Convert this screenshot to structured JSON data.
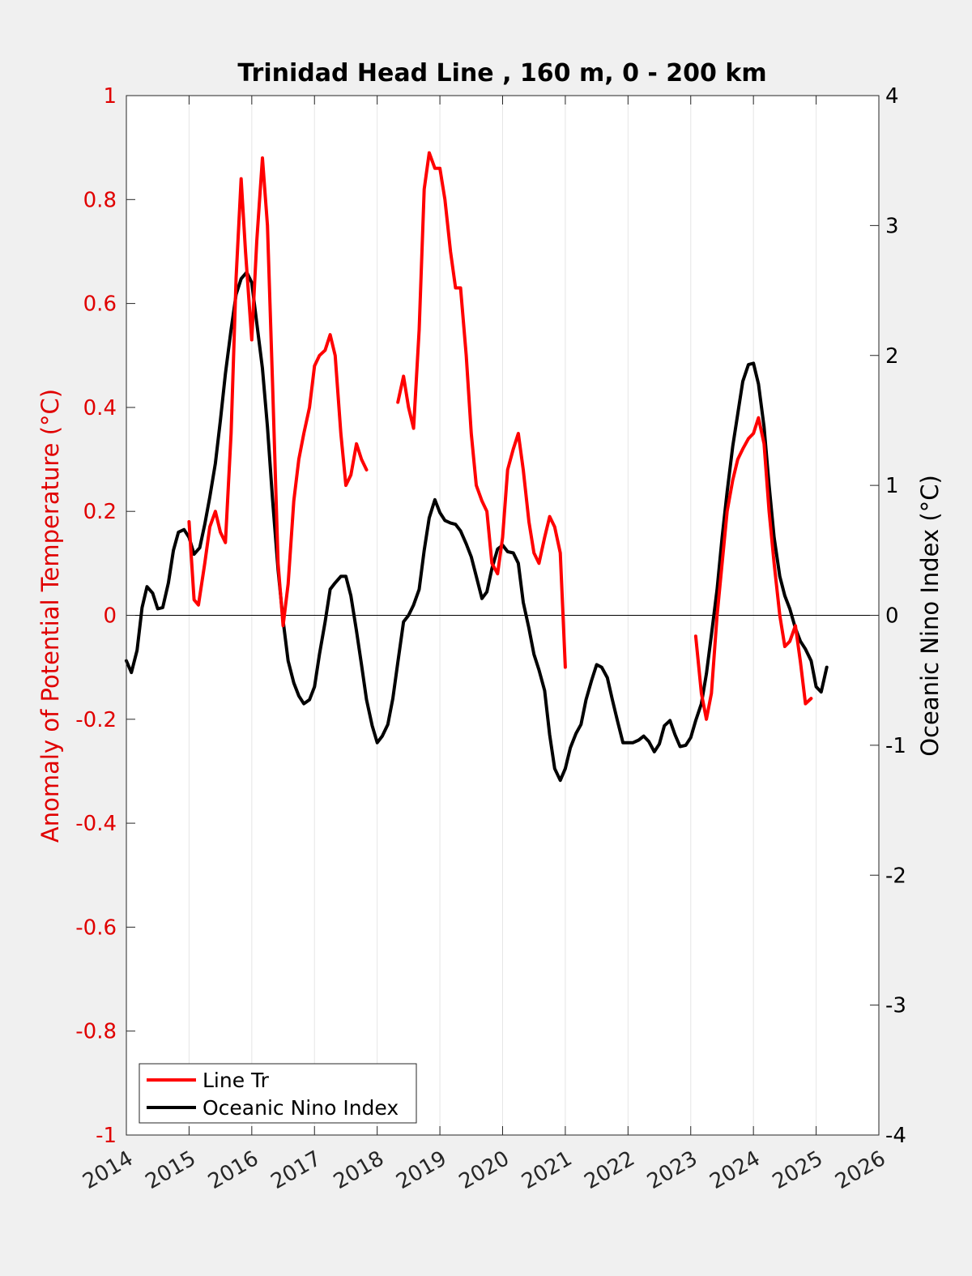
{
  "chart_data": {
    "type": "line",
    "title": "Trinidad Head Line , 160 m, 0 - 200 km",
    "ylabel_left": "Anomaly of Potential Temperature (°C)",
    "ylabel_right": "Oceanic Nino Index (°C)",
    "xlabel": "",
    "xlim": [
      2014,
      2026
    ],
    "ylim_left": [
      -1,
      1
    ],
    "ylim_right": [
      -4,
      4
    ],
    "x_ticks": [
      "2014",
      "2015",
      "2016",
      "2017",
      "2018",
      "2019",
      "2020",
      "2021",
      "2022",
      "2023",
      "2024",
      "2025",
      "2026"
    ],
    "y_ticks_left": [
      "1",
      "0.8",
      "0.6",
      "0.4",
      "0.2",
      "0",
      "-0.2",
      "-0.4",
      "-0.6",
      "-0.8",
      "-1"
    ],
    "y_ticks_right": [
      "4",
      "3",
      "2",
      "1",
      "0",
      "-1",
      "-2",
      "-3",
      "-4"
    ],
    "grid": "vertical",
    "legend_position": "bottom-left",
    "colors": {
      "line_tr": "#ff0000",
      "oni": "#000000",
      "left_axis": "#e00000",
      "right_axis": "#000000"
    },
    "legend": [
      "Line Tr",
      "Oceanic Nino Index"
    ],
    "series": [
      {
        "name": "Line Tr",
        "axis": "left",
        "color": "#ff0000",
        "segments": [
          [
            [
              2015.0,
              0.18
            ],
            [
              2015.08,
              0.03
            ],
            [
              2015.15,
              0.02
            ],
            [
              2015.25,
              0.1
            ],
            [
              2015.33,
              0.17
            ],
            [
              2015.42,
              0.2
            ],
            [
              2015.5,
              0.16
            ],
            [
              2015.58,
              0.14
            ],
            [
              2015.67,
              0.35
            ],
            [
              2015.75,
              0.65
            ],
            [
              2015.83,
              0.84
            ],
            [
              2015.9,
              0.7
            ],
            [
              2016.0,
              0.53
            ],
            [
              2016.08,
              0.72
            ],
            [
              2016.17,
              0.88
            ],
            [
              2016.25,
              0.75
            ],
            [
              2016.33,
              0.45
            ],
            [
              2016.42,
              0.1
            ],
            [
              2016.5,
              -0.02
            ],
            [
              2016.58,
              0.06
            ],
            [
              2016.67,
              0.22
            ],
            [
              2016.75,
              0.3
            ],
            [
              2016.83,
              0.35
            ],
            [
              2016.92,
              0.4
            ],
            [
              2017.0,
              0.48
            ],
            [
              2017.08,
              0.5
            ],
            [
              2017.17,
              0.51
            ],
            [
              2017.25,
              0.54
            ],
            [
              2017.33,
              0.5
            ],
            [
              2017.42,
              0.35
            ],
            [
              2017.5,
              0.25
            ],
            [
              2017.58,
              0.27
            ],
            [
              2017.67,
              0.33
            ],
            [
              2017.75,
              0.3
            ],
            [
              2017.83,
              0.28
            ]
          ],
          [
            [
              2018.33,
              0.41
            ],
            [
              2018.42,
              0.46
            ],
            [
              2018.5,
              0.4
            ],
            [
              2018.58,
              0.36
            ],
            [
              2018.67,
              0.55
            ],
            [
              2018.75,
              0.82
            ],
            [
              2018.83,
              0.89
            ],
            [
              2018.92,
              0.86
            ],
            [
              2019.0,
              0.86
            ],
            [
              2019.08,
              0.8
            ],
            [
              2019.17,
              0.7
            ],
            [
              2019.25,
              0.63
            ],
            [
              2019.33,
              0.63
            ],
            [
              2019.42,
              0.5
            ],
            [
              2019.5,
              0.35
            ],
            [
              2019.58,
              0.25
            ],
            [
              2019.67,
              0.22
            ],
            [
              2019.75,
              0.2
            ],
            [
              2019.83,
              0.1
            ],
            [
              2019.92,
              0.08
            ],
            [
              2020.0,
              0.15
            ],
            [
              2020.08,
              0.28
            ],
            [
              2020.17,
              0.32
            ],
            [
              2020.25,
              0.35
            ],
            [
              2020.33,
              0.28
            ],
            [
              2020.42,
              0.18
            ],
            [
              2020.5,
              0.12
            ],
            [
              2020.58,
              0.1
            ],
            [
              2020.67,
              0.15
            ],
            [
              2020.75,
              0.19
            ],
            [
              2020.83,
              0.17
            ],
            [
              2020.92,
              0.12
            ],
            [
              2021.0,
              -0.1
            ]
          ],
          [
            [
              2023.08,
              -0.04
            ],
            [
              2023.17,
              -0.15
            ],
            [
              2023.25,
              -0.2
            ],
            [
              2023.33,
              -0.15
            ],
            [
              2023.42,
              0.0
            ],
            [
              2023.5,
              0.1
            ],
            [
              2023.58,
              0.2
            ],
            [
              2023.67,
              0.26
            ],
            [
              2023.75,
              0.3
            ],
            [
              2023.83,
              0.32
            ],
            [
              2023.92,
              0.34
            ],
            [
              2024.0,
              0.35
            ],
            [
              2024.08,
              0.38
            ],
            [
              2024.17,
              0.33
            ],
            [
              2024.25,
              0.2
            ],
            [
              2024.33,
              0.1
            ],
            [
              2024.42,
              0.0
            ],
            [
              2024.5,
              -0.06
            ],
            [
              2024.58,
              -0.05
            ],
            [
              2024.67,
              -0.02
            ],
            [
              2024.75,
              -0.09
            ],
            [
              2024.83,
              -0.17
            ],
            [
              2024.92,
              -0.16
            ]
          ]
        ]
      },
      {
        "name": "Oceanic Nino Index",
        "axis": "right",
        "color": "#000000",
        "segments": [
          [
            [
              2014.0,
              -0.35
            ],
            [
              2014.08,
              -0.44
            ],
            [
              2014.17,
              -0.27
            ],
            [
              2014.25,
              0.06
            ],
            [
              2014.33,
              0.22
            ],
            [
              2014.42,
              0.17
            ],
            [
              2014.5,
              0.05
            ],
            [
              2014.58,
              0.06
            ],
            [
              2014.67,
              0.25
            ],
            [
              2014.75,
              0.5
            ],
            [
              2014.83,
              0.64
            ],
            [
              2014.92,
              0.66
            ],
            [
              2015.0,
              0.6
            ],
            [
              2015.08,
              0.47
            ],
            [
              2015.17,
              0.52
            ],
            [
              2015.25,
              0.7
            ],
            [
              2015.33,
              0.91
            ],
            [
              2015.42,
              1.17
            ],
            [
              2015.5,
              1.5
            ],
            [
              2015.58,
              1.86
            ],
            [
              2015.67,
              2.2
            ],
            [
              2015.75,
              2.47
            ],
            [
              2015.83,
              2.59
            ],
            [
              2015.92,
              2.64
            ],
            [
              2016.0,
              2.56
            ],
            [
              2016.08,
              2.25
            ],
            [
              2016.17,
              1.9
            ],
            [
              2016.25,
              1.45
            ],
            [
              2016.33,
              0.9
            ],
            [
              2016.42,
              0.35
            ],
            [
              2016.5,
              -0.04
            ],
            [
              2016.58,
              -0.35
            ],
            [
              2016.67,
              -0.52
            ],
            [
              2016.75,
              -0.62
            ],
            [
              2016.83,
              -0.68
            ],
            [
              2016.92,
              -0.65
            ],
            [
              2017.0,
              -0.55
            ],
            [
              2017.08,
              -0.3
            ],
            [
              2017.17,
              -0.05
            ],
            [
              2017.25,
              0.2
            ],
            [
              2017.33,
              0.25
            ],
            [
              2017.42,
              0.3
            ],
            [
              2017.5,
              0.3
            ],
            [
              2017.58,
              0.15
            ],
            [
              2017.67,
              -0.12
            ],
            [
              2017.75,
              -0.38
            ],
            [
              2017.83,
              -0.65
            ],
            [
              2017.92,
              -0.85
            ],
            [
              2018.0,
              -0.98
            ],
            [
              2018.08,
              -0.93
            ],
            [
              2018.17,
              -0.84
            ],
            [
              2018.25,
              -0.64
            ],
            [
              2018.33,
              -0.36
            ],
            [
              2018.42,
              -0.05
            ],
            [
              2018.5,
              0.0
            ],
            [
              2018.58,
              0.08
            ],
            [
              2018.67,
              0.2
            ],
            [
              2018.75,
              0.5
            ],
            [
              2018.83,
              0.75
            ],
            [
              2018.92,
              0.89
            ],
            [
              2019.0,
              0.79
            ],
            [
              2019.08,
              0.73
            ],
            [
              2019.17,
              0.71
            ],
            [
              2019.25,
              0.7
            ],
            [
              2019.33,
              0.65
            ],
            [
              2019.42,
              0.55
            ],
            [
              2019.5,
              0.45
            ],
            [
              2019.58,
              0.3
            ],
            [
              2019.67,
              0.13
            ],
            [
              2019.75,
              0.18
            ],
            [
              2019.83,
              0.36
            ],
            [
              2019.92,
              0.51
            ],
            [
              2020.0,
              0.54
            ],
            [
              2020.08,
              0.49
            ],
            [
              2020.17,
              0.48
            ],
            [
              2020.25,
              0.4
            ],
            [
              2020.33,
              0.1
            ],
            [
              2020.42,
              -0.1
            ],
            [
              2020.5,
              -0.3
            ],
            [
              2020.58,
              -0.42
            ],
            [
              2020.67,
              -0.58
            ],
            [
              2020.75,
              -0.92
            ],
            [
              2020.83,
              -1.18
            ],
            [
              2020.92,
              -1.27
            ],
            [
              2021.0,
              -1.18
            ],
            [
              2021.08,
              -1.02
            ],
            [
              2021.17,
              -0.91
            ],
            [
              2021.25,
              -0.84
            ],
            [
              2021.33,
              -0.65
            ],
            [
              2021.42,
              -0.5
            ],
            [
              2021.5,
              -0.38
            ],
            [
              2021.58,
              -0.4
            ],
            [
              2021.67,
              -0.48
            ],
            [
              2021.75,
              -0.65
            ],
            [
              2021.83,
              -0.81
            ],
            [
              2021.92,
              -0.98
            ],
            [
              2022.0,
              -0.98
            ],
            [
              2022.08,
              -0.98
            ],
            [
              2022.17,
              -0.96
            ],
            [
              2022.25,
              -0.93
            ],
            [
              2022.33,
              -0.97
            ],
            [
              2022.42,
              -1.05
            ],
            [
              2022.5,
              -0.99
            ],
            [
              2022.58,
              -0.85
            ],
            [
              2022.67,
              -0.81
            ],
            [
              2022.75,
              -0.92
            ],
            [
              2022.83,
              -1.01
            ],
            [
              2022.92,
              -1.0
            ],
            [
              2023.0,
              -0.94
            ],
            [
              2023.08,
              -0.81
            ],
            [
              2023.17,
              -0.68
            ],
            [
              2023.25,
              -0.45
            ],
            [
              2023.33,
              -0.15
            ],
            [
              2023.42,
              0.2
            ],
            [
              2023.5,
              0.6
            ],
            [
              2023.58,
              0.95
            ],
            [
              2023.67,
              1.3
            ],
            [
              2023.75,
              1.55
            ],
            [
              2023.83,
              1.8
            ],
            [
              2023.92,
              1.93
            ],
            [
              2024.0,
              1.94
            ],
            [
              2024.08,
              1.78
            ],
            [
              2024.17,
              1.45
            ],
            [
              2024.25,
              1.0
            ],
            [
              2024.33,
              0.6
            ],
            [
              2024.42,
              0.3
            ],
            [
              2024.5,
              0.15
            ],
            [
              2024.58,
              0.05
            ],
            [
              2024.67,
              -0.1
            ],
            [
              2024.75,
              -0.2
            ],
            [
              2024.83,
              -0.26
            ],
            [
              2024.92,
              -0.35
            ],
            [
              2025.0,
              -0.55
            ],
            [
              2025.08,
              -0.59
            ],
            [
              2025.17,
              -0.4
            ]
          ]
        ]
      }
    ]
  }
}
